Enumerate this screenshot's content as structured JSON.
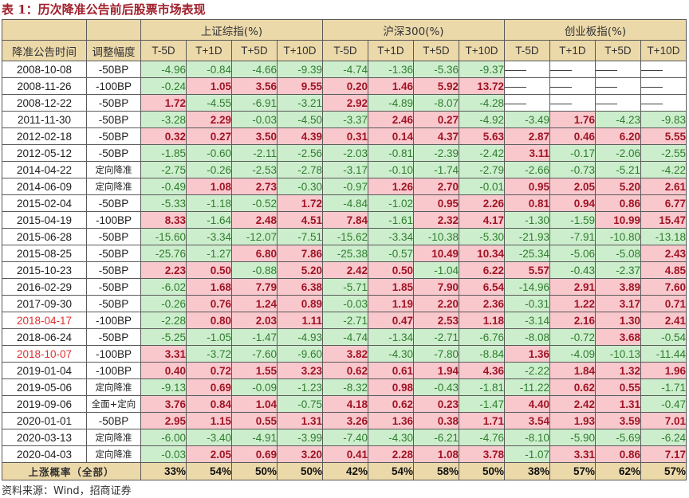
{
  "title": "表 1：历次降准公告前后股票市场表现",
  "header": {
    "col_date": "降准公告时间",
    "col_adj": "调整幅度",
    "groups": [
      "上证综指(%)",
      "沪深300(%)",
      "创业板指(%)"
    ],
    "subcols": [
      "T-5D",
      "T+1D",
      "T+5D",
      "T+10D"
    ]
  },
  "colors": {
    "header_bg": "#ecd9aa",
    "positive_bg": "#f8c8cd",
    "positive_text": "#a01525",
    "negative_bg": "#cdeecd",
    "negative_text": "#2f7d2f",
    "highlight_date": "#e03030",
    "title": "#a0202c"
  },
  "rows": [
    {
      "date": "2008-10-08",
      "adj": "-50BP",
      "highlight": false,
      "sh": [
        "-4.96",
        "-0.84",
        "-4.66",
        "-9.39"
      ],
      "hs300": [
        "-4.74",
        "-1.36",
        "-5.36",
        "-9.37"
      ],
      "cyb": [
        "——",
        "——",
        "——",
        "——"
      ]
    },
    {
      "date": "2008-11-26",
      "adj": "-100BP",
      "highlight": false,
      "sh": [
        "-0.24",
        "1.05",
        "3.56",
        "9.55"
      ],
      "hs300": [
        "0.20",
        "1.46",
        "5.92",
        "13.72"
      ],
      "cyb": [
        "——",
        "——",
        "——",
        "——"
      ]
    },
    {
      "date": "2008-12-22",
      "adj": "-50BP",
      "highlight": false,
      "sh": [
        "1.72",
        "-4.55",
        "-6.91",
        "-3.21"
      ],
      "hs300": [
        "2.92",
        "-4.89",
        "-8.07",
        "-4.28"
      ],
      "cyb": [
        "——",
        "——",
        "——",
        "——"
      ]
    },
    {
      "date": "2011-11-30",
      "adj": "-50BP",
      "highlight": false,
      "sh": [
        "-3.28",
        "2.29",
        "-0.03",
        "-4.50"
      ],
      "hs300": [
        "-3.37",
        "2.46",
        "0.27",
        "-4.92"
      ],
      "cyb": [
        "-3.49",
        "1.76",
        "-4.23",
        "-9.83"
      ]
    },
    {
      "date": "2012-02-18",
      "adj": "-50BP",
      "highlight": false,
      "sh": [
        "0.32",
        "0.27",
        "3.50",
        "4.39"
      ],
      "hs300": [
        "0.31",
        "0.14",
        "4.37",
        "5.63"
      ],
      "cyb": [
        "2.87",
        "0.46",
        "6.20",
        "5.55"
      ]
    },
    {
      "date": "2012-05-12",
      "adj": "-50BP",
      "highlight": false,
      "sh": [
        "-1.85",
        "-0.60",
        "-2.11",
        "-2.56"
      ],
      "hs300": [
        "-2.03",
        "-0.81",
        "-2.39",
        "-2.42"
      ],
      "cyb": [
        "3.11",
        "-0.17",
        "-2.06",
        "-2.55"
      ]
    },
    {
      "date": "2014-04-22",
      "adj": "定向降准",
      "highlight": false,
      "sh": [
        "-2.75",
        "-0.26",
        "-2.53",
        "-2.78"
      ],
      "hs300": [
        "-3.17",
        "-0.10",
        "-1.74",
        "-2.79"
      ],
      "cyb": [
        "-2.66",
        "-0.73",
        "-5.21",
        "-4.22"
      ]
    },
    {
      "date": "2014-06-09",
      "adj": "定向降准",
      "highlight": false,
      "sh": [
        "-0.49",
        "1.08",
        "2.73",
        "-0.30"
      ],
      "hs300": [
        "-0.97",
        "1.26",
        "2.70",
        "-0.01"
      ],
      "cyb": [
        "0.95",
        "2.05",
        "5.20",
        "2.61"
      ]
    },
    {
      "date": "2015-02-04",
      "adj": "-50BP",
      "highlight": false,
      "sh": [
        "-5.33",
        "-1.18",
        "-0.52",
        "1.72"
      ],
      "hs300": [
        "-4.84",
        "-1.02",
        "0.95",
        "2.26"
      ],
      "cyb": [
        "0.81",
        "0.94",
        "0.86",
        "6.77"
      ]
    },
    {
      "date": "2015-04-19",
      "adj": "-100BP",
      "highlight": false,
      "sh": [
        "8.33",
        "-1.64",
        "2.48",
        "4.51"
      ],
      "hs300": [
        "7.84",
        "-1.61",
        "2.32",
        "4.17"
      ],
      "cyb": [
        "-1.30",
        "-1.59",
        "10.99",
        "15.47"
      ]
    },
    {
      "date": "2015-06-28",
      "adj": "-50BP",
      "highlight": false,
      "sh": [
        "-15.60",
        "-3.34",
        "-12.07",
        "-7.51"
      ],
      "hs300": [
        "-15.62",
        "-3.34",
        "-10.38",
        "-5.30"
      ],
      "cyb": [
        "-21.93",
        "-7.91",
        "-10.80",
        "-13.18"
      ]
    },
    {
      "date": "2015-08-25",
      "adj": "-50BP",
      "highlight": false,
      "sh": [
        "-25.76",
        "-1.27",
        "6.80",
        "7.86"
      ],
      "hs300": [
        "-25.38",
        "-0.57",
        "10.49",
        "10.34"
      ],
      "cyb": [
        "-25.34",
        "-5.06",
        "-5.08",
        "2.43"
      ]
    },
    {
      "date": "2015-10-23",
      "adj": "-50BP",
      "highlight": false,
      "sh": [
        "2.23",
        "0.50",
        "-0.88",
        "5.20"
      ],
      "hs300": [
        "2.42",
        "0.50",
        "-1.04",
        "6.22"
      ],
      "cyb": [
        "5.57",
        "-0.43",
        "-2.37",
        "4.85"
      ]
    },
    {
      "date": "2016-02-29",
      "adj": "-50BP",
      "highlight": false,
      "sh": [
        "-6.02",
        "1.68",
        "7.79",
        "6.38"
      ],
      "hs300": [
        "-5.71",
        "1.85",
        "7.90",
        "6.54"
      ],
      "cyb": [
        "-14.96",
        "2.91",
        "3.89",
        "7.60"
      ]
    },
    {
      "date": "2017-09-30",
      "adj": "-50BP",
      "highlight": false,
      "sh": [
        "-0.26",
        "0.76",
        "1.24",
        "0.89"
      ],
      "hs300": [
        "-0.03",
        "1.19",
        "2.20",
        "2.36"
      ],
      "cyb": [
        "-0.31",
        "1.22",
        "3.17",
        "0.71"
      ]
    },
    {
      "date": "2018-04-17",
      "adj": "-100BP",
      "highlight": true,
      "sh": [
        "-2.28",
        "0.80",
        "2.03",
        "1.11"
      ],
      "hs300": [
        "-2.71",
        "0.47",
        "2.53",
        "1.18"
      ],
      "cyb": [
        "-3.14",
        "2.16",
        "1.30",
        "2.41"
      ]
    },
    {
      "date": "2018-06-24",
      "adj": "-50BP",
      "highlight": false,
      "sh": [
        "-5.25",
        "-1.05",
        "-1.47",
        "-4.93"
      ],
      "hs300": [
        "-4.74",
        "-1.34",
        "-2.71",
        "-6.76"
      ],
      "cyb": [
        "-8.08",
        "-0.72",
        "3.68",
        "-0.54"
      ]
    },
    {
      "date": "2018-10-07",
      "adj": "-100BP",
      "highlight": true,
      "sh": [
        "3.31",
        "-3.72",
        "-7.60",
        "-9.60"
      ],
      "hs300": [
        "3.82",
        "-4.30",
        "-7.80",
        "-8.84"
      ],
      "cyb": [
        "1.36",
        "-4.09",
        "-10.13",
        "-11.44"
      ]
    },
    {
      "date": "2019-01-04",
      "adj": "-100BP",
      "highlight": false,
      "sh": [
        "0.40",
        "0.72",
        "1.55",
        "3.23"
      ],
      "hs300": [
        "0.62",
        "0.61",
        "1.94",
        "4.36"
      ],
      "cyb": [
        "-2.22",
        "1.84",
        "1.32",
        "1.96"
      ]
    },
    {
      "date": "2019-05-06",
      "adj": "定向降准",
      "highlight": false,
      "sh": [
        "-9.13",
        "0.69",
        "-0.09",
        "-1.23"
      ],
      "hs300": [
        "-8.32",
        "0.98",
        "-0.43",
        "-1.81"
      ],
      "cyb": [
        "-11.22",
        "0.62",
        "0.55",
        "-1.71"
      ]
    },
    {
      "date": "2019-09-06",
      "adj": "全面+定向",
      "highlight": false,
      "sh": [
        "3.76",
        "0.84",
        "1.04",
        "-0.75"
      ],
      "hs300": [
        "4.18",
        "0.62",
        "0.23",
        "-1.47"
      ],
      "cyb": [
        "4.40",
        "2.42",
        "1.31",
        "-0.47"
      ]
    },
    {
      "date": "2020-01-01",
      "adj": "-50BP",
      "highlight": false,
      "sh": [
        "2.95",
        "1.15",
        "0.55",
        "1.31"
      ],
      "hs300": [
        "3.26",
        "1.36",
        "0.38",
        "1.71"
      ],
      "cyb": [
        "3.54",
        "1.93",
        "3.59",
        "7.01"
      ]
    },
    {
      "date": "2020-03-13",
      "adj": "定向降准",
      "highlight": false,
      "sh": [
        "-6.00",
        "-3.40",
        "-4.91",
        "-3.99"
      ],
      "hs300": [
        "-7.40",
        "-4.30",
        "-6.21",
        "-4.76"
      ],
      "cyb": [
        "-8.10",
        "-5.90",
        "-5.69",
        "-6.24"
      ]
    },
    {
      "date": "2020-04-03",
      "adj": "定向降准",
      "highlight": false,
      "sh": [
        "-0.03",
        "2.05",
        "0.69",
        "3.20"
      ],
      "hs300": [
        "0.41",
        "2.28",
        "1.08",
        "3.78"
      ],
      "cyb": [
        "-1.07",
        "3.31",
        "0.86",
        "7.17"
      ]
    }
  ],
  "summary": {
    "label": "上涨概率（全部）",
    "sh": [
      "33%",
      "54%",
      "50%",
      "50%"
    ],
    "hs300": [
      "42%",
      "54%",
      "58%",
      "50%"
    ],
    "cyb": [
      "38%",
      "57%",
      "62%",
      "57%"
    ]
  },
  "source": "资料来源：Wind，招商证券"
}
